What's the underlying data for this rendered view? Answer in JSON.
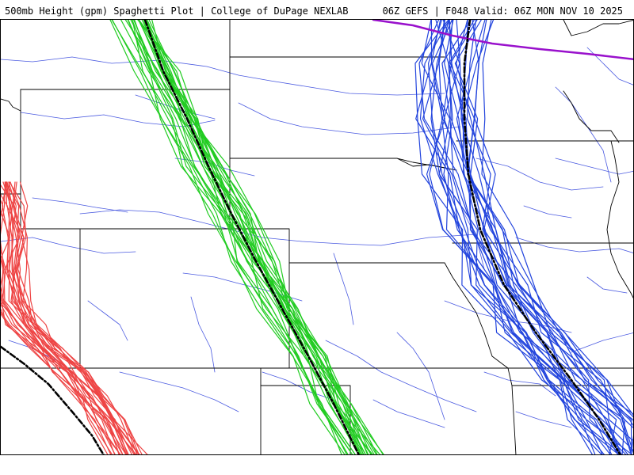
{
  "header": {
    "title_left": "500mb Height (gpm) Spaghetti Plot | College of DuPage NEXLAB",
    "title_right": "06Z GEFS | F048 Valid: 06Z MON NOV 10 2025"
  },
  "map": {
    "colors": {
      "states": "#000000",
      "rivers": "#4a5ae0",
      "contour_red": "#ee4444",
      "contour_green": "#22cc22",
      "contour_blue": "#2244dd",
      "contour_purple": "#9911cc",
      "ensemble_mean": "#000000"
    }
  }
}
